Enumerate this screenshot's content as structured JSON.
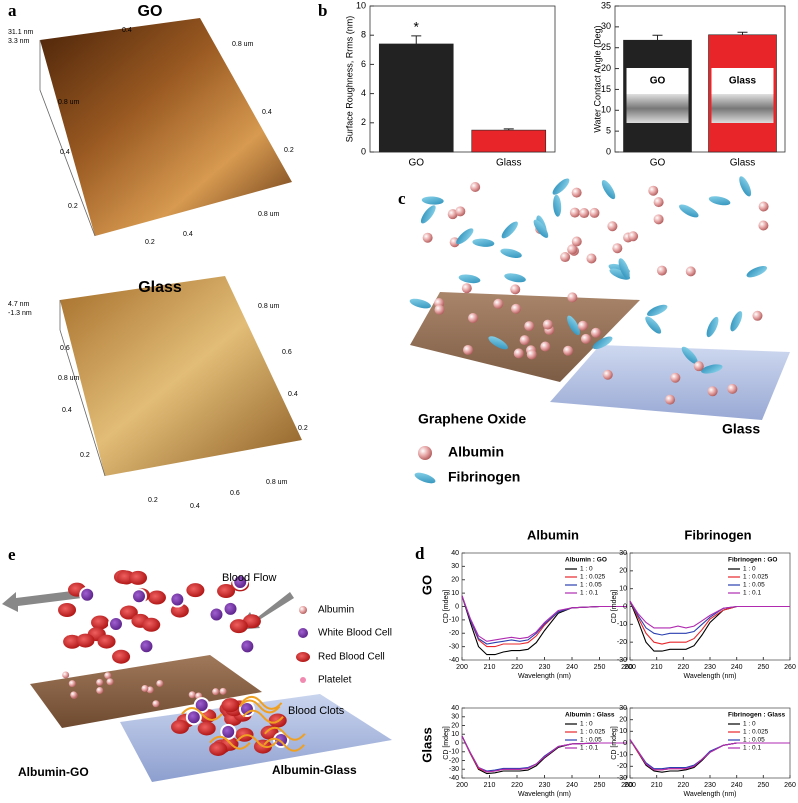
{
  "panel_labels": [
    "a",
    "b",
    "c",
    "d",
    "e"
  ],
  "afm": [
    {
      "title": "GO",
      "z_labels": [
        "31.1 nm",
        "3.3 nm"
      ],
      "axis_labels": [
        "0.4",
        "0.8 um",
        "0.8 um",
        "0.4",
        "0.2",
        "0.4",
        "0.2",
        "0.2",
        "0.4",
        "0.8 um"
      ]
    },
    {
      "title": "Glass",
      "z_labels": [
        "4.7 nm",
        "-1.3 nm"
      ],
      "axis_labels": [
        "0.8 um",
        "0.6",
        "0.4",
        "0.2",
        "0.8 um",
        "0.6",
        "0.4",
        "0.2",
        "0.2",
        "0.4",
        "0.6",
        "0.8 um"
      ]
    }
  ],
  "adsorption": {
    "surfaces": [
      "Graphene Oxide",
      "Glass"
    ],
    "legend": [
      "Albumin",
      "Fibrinogen"
    ]
  },
  "blood": {
    "flow": "Blood Flow",
    "legend": [
      "Albumin",
      "White Blood Cell",
      "Red Blood Cell",
      "Platelet"
    ],
    "clots": "Blood Clots",
    "surfaces": [
      "Albumin-GO",
      "Albumin-Glass"
    ]
  },
  "cd_headers": {
    "columns": [
      "Albumin",
      "Fibrinogen"
    ],
    "rows": [
      "GO",
      "Glass"
    ]
  },
  "chart_data": [
    {
      "type": "bar",
      "ylabel": "Surface Roughness, Rrms (nm)",
      "categories": [
        "GO",
        "Glass"
      ],
      "values": [
        7.4,
        1.5
      ],
      "errors": [
        0.55,
        0.08
      ],
      "colors": [
        "#222222",
        "#e8262a"
      ],
      "ylim": [
        0,
        10
      ],
      "yticks": [
        0,
        2,
        4,
        6,
        8,
        10
      ],
      "annotation": "*"
    },
    {
      "type": "bar",
      "ylabel": "Water Contact Angle (Deg)",
      "categories": [
        "GO",
        "Glass"
      ],
      "values": [
        26.8,
        28.1
      ],
      "errors": [
        1.2,
        0.6
      ],
      "colors": [
        "#222222",
        "#e8262a"
      ],
      "ylim": [
        0,
        35
      ],
      "yticks": [
        0,
        5,
        10,
        15,
        20,
        25,
        30,
        35
      ],
      "inset_labels": [
        "GO",
        "Glass"
      ]
    },
    {
      "type": "line",
      "legend_title": "Albumin : GO",
      "xlabel": "Wavelength (nm)",
      "ylabel": "CD [mdeg]",
      "x": [
        200,
        203,
        206,
        209,
        212,
        215,
        218,
        221,
        224,
        227,
        230,
        235,
        240,
        250,
        260
      ],
      "xlim": [
        200,
        260
      ],
      "xticks": [
        200,
        210,
        220,
        230,
        240,
        250,
        260
      ],
      "ylim": [
        -40,
        40
      ],
      "yticks": [
        -40,
        -30,
        -20,
        -10,
        0,
        10,
        20,
        30,
        40
      ],
      "series": [
        {
          "name": "1 : 0",
          "color": "#000000",
          "values": [
            8,
            -12,
            -30,
            -36,
            -36,
            -34,
            -33,
            -33,
            -32,
            -27,
            -18,
            -5,
            -1,
            0,
            0
          ]
        },
        {
          "name": "1 : 0.025",
          "color": "#e8262a",
          "values": [
            8,
            -10,
            -25,
            -30,
            -30,
            -28,
            -28,
            -28,
            -27,
            -22,
            -14,
            -4,
            -1,
            0,
            0
          ]
        },
        {
          "name": "1 : 0.05",
          "color": "#2a3fb0",
          "values": [
            8,
            -10,
            -24,
            -28,
            -27,
            -26,
            -25,
            -26,
            -25,
            -20,
            -13,
            -4,
            -1,
            0,
            0
          ]
        },
        {
          "name": "1 : 0.1",
          "color": "#b02ab0",
          "values": [
            8,
            -9,
            -22,
            -26,
            -25,
            -24,
            -23,
            -24,
            -23,
            -19,
            -12,
            -3,
            -1,
            0,
            0
          ]
        }
      ]
    },
    {
      "type": "line",
      "legend_title": "Fibrinogen : GO",
      "xlabel": "Wavelength (nm)",
      "ylabel": "CD [mdeg]",
      "x": [
        200,
        203,
        206,
        209,
        212,
        215,
        218,
        221,
        224,
        227,
        230,
        235,
        240,
        250,
        260
      ],
      "xlim": [
        200,
        260
      ],
      "xticks": [
        200,
        210,
        220,
        230,
        240,
        250,
        260
      ],
      "ylim": [
        -30,
        30
      ],
      "yticks": [
        -30,
        -20,
        -10,
        0,
        10,
        20,
        30
      ],
      "series": [
        {
          "name": "1 : 0",
          "color": "#000000",
          "values": [
            3,
            -8,
            -20,
            -25,
            -25,
            -24,
            -24,
            -24,
            -22,
            -16,
            -9,
            -2,
            0,
            0,
            0
          ]
        },
        {
          "name": "1 : 0.025",
          "color": "#e8262a",
          "values": [
            3,
            -6,
            -15,
            -20,
            -21,
            -20,
            -20,
            -20,
            -18,
            -13,
            -7,
            -2,
            0,
            0,
            0
          ]
        },
        {
          "name": "1 : 0.05",
          "color": "#2a3fb0",
          "values": [
            3,
            -5,
            -12,
            -15,
            -16,
            -15,
            -15,
            -15,
            -14,
            -10,
            -6,
            -1,
            0,
            0,
            0
          ]
        },
        {
          "name": "1 : 0.1",
          "color": "#b02ab0",
          "values": [
            3,
            -4,
            -9,
            -12,
            -12,
            -12,
            -11,
            -12,
            -11,
            -8,
            -5,
            -1,
            0,
            0,
            0
          ]
        }
      ]
    },
    {
      "type": "line",
      "legend_title": "Albumin : Glass",
      "xlabel": "Wavelength (nm)",
      "ylabel": "CD [mdeg]",
      "x": [
        200,
        203,
        206,
        209,
        212,
        215,
        218,
        221,
        224,
        227,
        230,
        235,
        240,
        250,
        260
      ],
      "xlim": [
        200,
        260
      ],
      "xticks": [
        200,
        210,
        220,
        230,
        240,
        250,
        260
      ],
      "ylim": [
        -40,
        40
      ],
      "yticks": [
        -40,
        -30,
        -20,
        -10,
        0,
        10,
        20,
        30,
        40
      ],
      "series": [
        {
          "name": "1 : 0",
          "color": "#000000",
          "values": [
            8,
            -12,
            -30,
            -35,
            -34,
            -32,
            -32,
            -32,
            -31,
            -26,
            -17,
            -5,
            -1,
            0,
            0
          ]
        },
        {
          "name": "1 : 0.025",
          "color": "#e8262a",
          "values": [
            8,
            -12,
            -29,
            -33,
            -32,
            -30,
            -30,
            -30,
            -29,
            -24,
            -16,
            -4,
            -1,
            0,
            0
          ]
        },
        {
          "name": "1 : 0.05",
          "color": "#2a3fb0",
          "values": [
            8,
            -11,
            -28,
            -32,
            -31,
            -29,
            -29,
            -29,
            -28,
            -24,
            -15,
            -4,
            -1,
            0,
            0
          ]
        },
        {
          "name": "1 : 0.1",
          "color": "#b02ab0",
          "values": [
            8,
            -11,
            -28,
            -33,
            -32,
            -30,
            -30,
            -30,
            -29,
            -24,
            -16,
            -4,
            -1,
            0,
            0
          ]
        }
      ]
    },
    {
      "type": "line",
      "legend_title": "Fibrinogen : Glass",
      "xlabel": "Wavelength (nm)",
      "ylabel": "CD [mdeg]",
      "x": [
        200,
        203,
        206,
        209,
        212,
        215,
        218,
        221,
        224,
        227,
        230,
        235,
        240,
        250,
        260
      ],
      "xlim": [
        200,
        260
      ],
      "xticks": [
        200,
        210,
        220,
        230,
        240,
        250,
        260
      ],
      "ylim": [
        -30,
        30
      ],
      "yticks": [
        -30,
        -20,
        -10,
        0,
        10,
        20,
        30
      ],
      "series": [
        {
          "name": "1 : 0",
          "color": "#000000",
          "values": [
            3,
            -8,
            -19,
            -24,
            -25,
            -24,
            -24,
            -23,
            -21,
            -15,
            -8,
            -2,
            0,
            0,
            0
          ]
        },
        {
          "name": "1 : 0.025",
          "color": "#e8262a",
          "values": [
            3,
            -8,
            -18,
            -23,
            -23,
            -22,
            -22,
            -22,
            -20,
            -14,
            -8,
            -2,
            0,
            0,
            0
          ]
        },
        {
          "name": "1 : 0.05",
          "color": "#2a3fb0",
          "values": [
            3,
            -7,
            -17,
            -22,
            -22,
            -21,
            -21,
            -21,
            -19,
            -14,
            -7,
            -2,
            0,
            0,
            0
          ]
        },
        {
          "name": "1 : 0.1",
          "color": "#b02ab0",
          "values": [
            3,
            -7,
            -18,
            -23,
            -23,
            -22,
            -22,
            -22,
            -20,
            -14,
            -8,
            -2,
            0,
            0,
            0
          ]
        }
      ]
    }
  ]
}
